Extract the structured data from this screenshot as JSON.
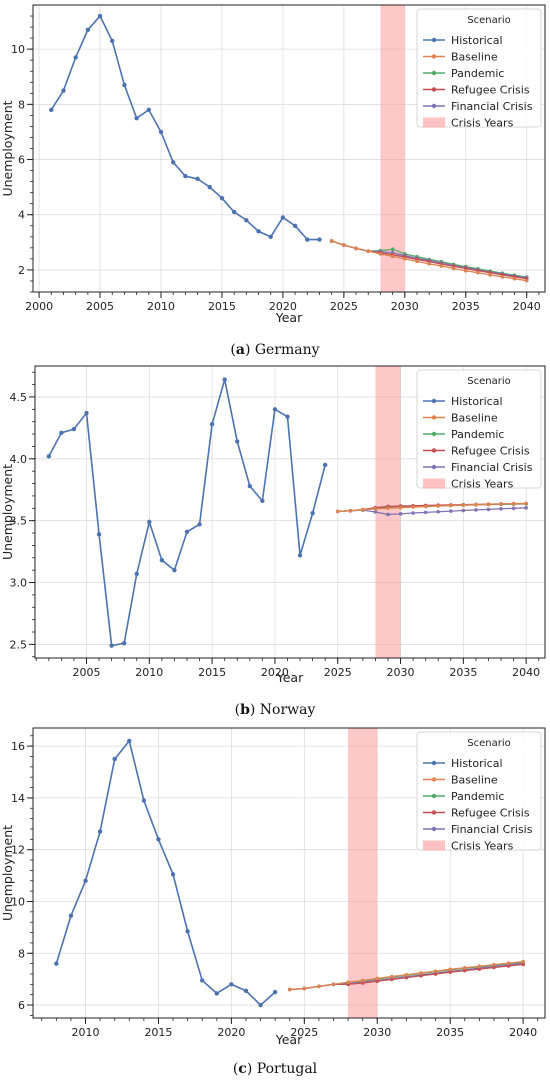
{
  "figure": {
    "legend_title": "Scenario",
    "x_label": "Year",
    "y_label": "Unemployment",
    "legend_entries": [
      "Historical",
      "Baseline",
      "Pandemic",
      "Refugee Crisis",
      "Financial Crisis",
      "Crisis Years"
    ],
    "colors": {
      "Historical": "#4c72b0",
      "Baseline": "#dd8452",
      "Pandemic": "#55a868",
      "Refugee Crisis": "#c44e52",
      "Financial Crisis": "#8172b3",
      "Crisis Years": "#ff9a9a"
    }
  },
  "chart_data": [
    {
      "type": "line",
      "caption_letter": "(a)",
      "caption_text": "Germany",
      "xlabel": "Year",
      "ylabel": "Unemployment",
      "xlim": [
        1999.5,
        2041.5
      ],
      "ylim": [
        1.2,
        11.6
      ],
      "xticks": [
        2000,
        2005,
        2010,
        2015,
        2020,
        2025,
        2030,
        2035,
        2040
      ],
      "yticks": [
        2,
        4,
        6,
        8,
        10
      ],
      "crisis_span": [
        2028,
        2030
      ],
      "legend_position": "top-right",
      "grid": true,
      "series": [
        {
          "name": "Historical",
          "x": [
            2001,
            2002,
            2003,
            2004,
            2005,
            2006,
            2007,
            2008,
            2009,
            2010,
            2011,
            2012,
            2013,
            2014,
            2015,
            2016,
            2017,
            2018,
            2019,
            2020,
            2021,
            2022,
            2023
          ],
          "values": [
            7.8,
            8.5,
            9.7,
            10.7,
            11.2,
            10.3,
            8.7,
            7.5,
            7.8,
            7.0,
            5.9,
            5.4,
            5.3,
            5.0,
            4.6,
            4.1,
            3.8,
            3.4,
            3.2,
            3.9,
            3.6,
            3.1,
            3.1
          ]
        },
        {
          "name": "Pandemic",
          "x": [
            2024,
            2025,
            2026,
            2027,
            2028,
            2029,
            2030,
            2031,
            2032,
            2033,
            2034,
            2035,
            2036,
            2037,
            2038,
            2039,
            2040
          ],
          "values": [
            3.05,
            2.9,
            2.78,
            2.68,
            2.7,
            2.75,
            2.58,
            2.48,
            2.38,
            2.3,
            2.2,
            2.12,
            2.04,
            1.96,
            1.88,
            1.81,
            1.74
          ]
        },
        {
          "name": "Financial Crisis",
          "x": [
            2024,
            2025,
            2026,
            2027,
            2028,
            2029,
            2030,
            2031,
            2032,
            2033,
            2034,
            2035,
            2036,
            2037,
            2038,
            2039,
            2040
          ],
          "values": [
            3.05,
            2.9,
            2.78,
            2.68,
            2.66,
            2.62,
            2.52,
            2.42,
            2.34,
            2.25,
            2.16,
            2.08,
            2.0,
            1.92,
            1.85,
            1.78,
            1.71
          ]
        },
        {
          "name": "Refugee Crisis",
          "x": [
            2024,
            2025,
            2026,
            2027,
            2028,
            2029,
            2030,
            2031,
            2032,
            2033,
            2034,
            2035,
            2036,
            2037,
            2038,
            2039,
            2040
          ],
          "values": [
            3.05,
            2.9,
            2.78,
            2.68,
            2.62,
            2.55,
            2.47,
            2.38,
            2.3,
            2.21,
            2.13,
            2.05,
            1.97,
            1.9,
            1.82,
            1.75,
            1.68
          ]
        },
        {
          "name": "Baseline",
          "x": [
            2024,
            2025,
            2026,
            2027,
            2028,
            2029,
            2030,
            2031,
            2032,
            2033,
            2034,
            2035,
            2036,
            2037,
            2038,
            2039,
            2040
          ],
          "values": [
            3.05,
            2.9,
            2.78,
            2.68,
            2.58,
            2.49,
            2.4,
            2.31,
            2.22,
            2.14,
            2.05,
            1.97,
            1.9,
            1.82,
            1.75,
            1.68,
            1.61
          ]
        }
      ]
    },
    {
      "type": "line",
      "caption_letter": "(b)",
      "caption_text": "Norway",
      "xlabel": "Year",
      "ylabel": "Unemployment",
      "xlim": [
        2000.9,
        2041.5
      ],
      "ylim": [
        2.39,
        4.75
      ],
      "xticks": [
        2005,
        2010,
        2015,
        2020,
        2025,
        2030,
        2035,
        2040
      ],
      "yticks": [
        2.5,
        3.0,
        3.5,
        4.0,
        4.5
      ],
      "crisis_span": [
        2028,
        2030
      ],
      "legend_position": "top-right",
      "grid": true,
      "series": [
        {
          "name": "Historical",
          "x": [
            2002,
            2003,
            2004,
            2005,
            2006,
            2007,
            2008,
            2009,
            2010,
            2011,
            2012,
            2013,
            2014,
            2015,
            2016,
            2017,
            2018,
            2019,
            2020,
            2021,
            2022,
            2023,
            2024
          ],
          "values": [
            4.02,
            4.21,
            4.24,
            4.37,
            3.39,
            2.49,
            2.51,
            3.07,
            3.49,
            3.18,
            3.1,
            3.41,
            3.47,
            4.28,
            4.64,
            4.14,
            3.78,
            3.66,
            4.4,
            4.34,
            3.22,
            3.56,
            3.95
          ]
        },
        {
          "name": "Financial Crisis",
          "x": [
            2025,
            2026,
            2027,
            2028,
            2029,
            2030,
            2031,
            2032,
            2033,
            2034,
            2035,
            2036,
            2037,
            2038,
            2039,
            2040
          ],
          "values": [
            3.575,
            3.58,
            3.585,
            3.57,
            3.55,
            3.555,
            3.562,
            3.567,
            3.572,
            3.577,
            3.582,
            3.587,
            3.591,
            3.596,
            3.6,
            3.604
          ]
        },
        {
          "name": "Pandemic",
          "x": [
            2025,
            2026,
            2027,
            2028,
            2029,
            2030,
            2031,
            2032,
            2033,
            2034,
            2035,
            2036,
            2037,
            2038,
            2039,
            2040
          ],
          "values": [
            3.575,
            3.58,
            3.585,
            3.6,
            3.61,
            3.615,
            3.618,
            3.62,
            3.622,
            3.624,
            3.626,
            3.628,
            3.63,
            3.632,
            3.634,
            3.636
          ]
        },
        {
          "name": "Refugee Crisis",
          "x": [
            2025,
            2026,
            2027,
            2028,
            2029,
            2030,
            2031,
            2032,
            2033,
            2034,
            2035,
            2036,
            2037,
            2038,
            2039,
            2040
          ],
          "values": [
            3.575,
            3.58,
            3.59,
            3.605,
            3.615,
            3.618,
            3.62,
            3.623,
            3.625,
            3.627,
            3.629,
            3.631,
            3.633,
            3.635,
            3.637,
            3.638
          ]
        },
        {
          "name": "Baseline",
          "x": [
            2025,
            2026,
            2027,
            2028,
            2029,
            2030,
            2031,
            2032,
            2033,
            2034,
            2035,
            2036,
            2037,
            2038,
            2039,
            2040
          ],
          "values": [
            3.575,
            3.58,
            3.588,
            3.595,
            3.6,
            3.605,
            3.61,
            3.614,
            3.618,
            3.622,
            3.626,
            3.629,
            3.632,
            3.635,
            3.638,
            3.64
          ]
        }
      ]
    },
    {
      "type": "line",
      "caption_letter": "(c)",
      "caption_text": "Portugal",
      "xlabel": "Year",
      "ylabel": "Unemployment",
      "xlim": [
        2006.4,
        2041.5
      ],
      "ylim": [
        5.5,
        16.7
      ],
      "xticks": [
        2010,
        2015,
        2020,
        2025,
        2030,
        2035,
        2040
      ],
      "yticks": [
        6,
        8,
        10,
        12,
        14,
        16
      ],
      "crisis_span": [
        2028,
        2030
      ],
      "legend_position": "top-right",
      "grid": true,
      "series": [
        {
          "name": "Historical",
          "x": [
            2008,
            2009,
            2010,
            2011,
            2012,
            2013,
            2014,
            2015,
            2016,
            2017,
            2018,
            2019,
            2020,
            2021,
            2022,
            2023
          ],
          "values": [
            7.6,
            9.45,
            10.8,
            12.7,
            15.5,
            16.2,
            13.9,
            12.4,
            11.05,
            8.85,
            6.95,
            6.45,
            6.8,
            6.55,
            6.0,
            6.5
          ]
        },
        {
          "name": "Pandemic",
          "x": [
            2024,
            2025,
            2026,
            2027,
            2028,
            2029,
            2030,
            2031,
            2032,
            2033,
            2034,
            2035,
            2036,
            2037,
            2038,
            2039,
            2040
          ],
          "values": [
            6.6,
            6.64,
            6.72,
            6.8,
            6.87,
            6.93,
            7.0,
            7.08,
            7.15,
            7.22,
            7.29,
            7.36,
            7.42,
            7.48,
            7.54,
            7.6,
            7.65
          ]
        },
        {
          "name": "Financial Crisis",
          "x": [
            2024,
            2025,
            2026,
            2027,
            2028,
            2029,
            2030,
            2031,
            2032,
            2033,
            2034,
            2035,
            2036,
            2037,
            2038,
            2039,
            2040
          ],
          "values": [
            6.6,
            6.64,
            6.72,
            6.8,
            6.82,
            6.88,
            6.95,
            7.02,
            7.09,
            7.16,
            7.23,
            7.3,
            7.36,
            7.43,
            7.49,
            7.55,
            7.61
          ]
        },
        {
          "name": "Refugee Crisis",
          "x": [
            2024,
            2025,
            2026,
            2027,
            2028,
            2029,
            2030,
            2031,
            2032,
            2033,
            2034,
            2035,
            2036,
            2037,
            2038,
            2039,
            2040
          ],
          "values": [
            6.6,
            6.64,
            6.72,
            6.8,
            6.8,
            6.85,
            6.92,
            6.99,
            7.06,
            7.13,
            7.2,
            7.27,
            7.33,
            7.39,
            7.45,
            7.51,
            7.57
          ]
        },
        {
          "name": "Baseline",
          "x": [
            2024,
            2025,
            2026,
            2027,
            2028,
            2029,
            2030,
            2031,
            2032,
            2033,
            2034,
            2035,
            2036,
            2037,
            2038,
            2039,
            2040
          ],
          "values": [
            6.6,
            6.64,
            6.72,
            6.8,
            6.88,
            6.95,
            7.03,
            7.1,
            7.17,
            7.24,
            7.31,
            7.38,
            7.44,
            7.5,
            7.56,
            7.62,
            7.68
          ]
        }
      ]
    }
  ]
}
